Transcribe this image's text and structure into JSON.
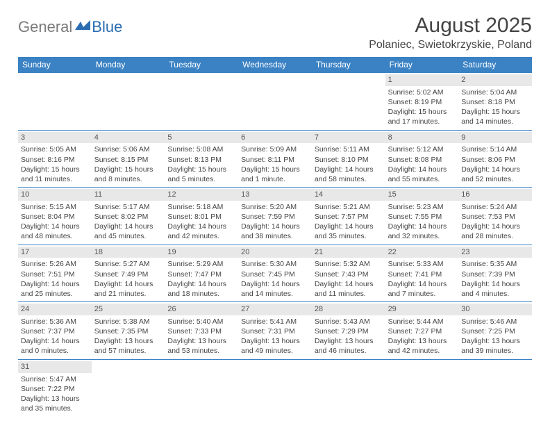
{
  "logo": {
    "gray": "General",
    "blue": "Blue"
  },
  "title": "August 2025",
  "location": "Polaniec, Swietokrzyskie, Poland",
  "colors": {
    "header_bg": "#3b82c4",
    "header_text": "#ffffff",
    "day_bar_bg": "#e8e8e8",
    "text": "#444444",
    "row_border": "#3b82c4"
  },
  "weekdays": [
    "Sunday",
    "Monday",
    "Tuesday",
    "Wednesday",
    "Thursday",
    "Friday",
    "Saturday"
  ],
  "weeks": [
    [
      null,
      null,
      null,
      null,
      null,
      {
        "n": "1",
        "sr": "Sunrise: 5:02 AM",
        "ss": "Sunset: 8:19 PM",
        "d1": "Daylight: 15 hours",
        "d2": "and 17 minutes."
      },
      {
        "n": "2",
        "sr": "Sunrise: 5:04 AM",
        "ss": "Sunset: 8:18 PM",
        "d1": "Daylight: 15 hours",
        "d2": "and 14 minutes."
      }
    ],
    [
      {
        "n": "3",
        "sr": "Sunrise: 5:05 AM",
        "ss": "Sunset: 8:16 PM",
        "d1": "Daylight: 15 hours",
        "d2": "and 11 minutes."
      },
      {
        "n": "4",
        "sr": "Sunrise: 5:06 AM",
        "ss": "Sunset: 8:15 PM",
        "d1": "Daylight: 15 hours",
        "d2": "and 8 minutes."
      },
      {
        "n": "5",
        "sr": "Sunrise: 5:08 AM",
        "ss": "Sunset: 8:13 PM",
        "d1": "Daylight: 15 hours",
        "d2": "and 5 minutes."
      },
      {
        "n": "6",
        "sr": "Sunrise: 5:09 AM",
        "ss": "Sunset: 8:11 PM",
        "d1": "Daylight: 15 hours",
        "d2": "and 1 minute."
      },
      {
        "n": "7",
        "sr": "Sunrise: 5:11 AM",
        "ss": "Sunset: 8:10 PM",
        "d1": "Daylight: 14 hours",
        "d2": "and 58 minutes."
      },
      {
        "n": "8",
        "sr": "Sunrise: 5:12 AM",
        "ss": "Sunset: 8:08 PM",
        "d1": "Daylight: 14 hours",
        "d2": "and 55 minutes."
      },
      {
        "n": "9",
        "sr": "Sunrise: 5:14 AM",
        "ss": "Sunset: 8:06 PM",
        "d1": "Daylight: 14 hours",
        "d2": "and 52 minutes."
      }
    ],
    [
      {
        "n": "10",
        "sr": "Sunrise: 5:15 AM",
        "ss": "Sunset: 8:04 PM",
        "d1": "Daylight: 14 hours",
        "d2": "and 48 minutes."
      },
      {
        "n": "11",
        "sr": "Sunrise: 5:17 AM",
        "ss": "Sunset: 8:02 PM",
        "d1": "Daylight: 14 hours",
        "d2": "and 45 minutes."
      },
      {
        "n": "12",
        "sr": "Sunrise: 5:18 AM",
        "ss": "Sunset: 8:01 PM",
        "d1": "Daylight: 14 hours",
        "d2": "and 42 minutes."
      },
      {
        "n": "13",
        "sr": "Sunrise: 5:20 AM",
        "ss": "Sunset: 7:59 PM",
        "d1": "Daylight: 14 hours",
        "d2": "and 38 minutes."
      },
      {
        "n": "14",
        "sr": "Sunrise: 5:21 AM",
        "ss": "Sunset: 7:57 PM",
        "d1": "Daylight: 14 hours",
        "d2": "and 35 minutes."
      },
      {
        "n": "15",
        "sr": "Sunrise: 5:23 AM",
        "ss": "Sunset: 7:55 PM",
        "d1": "Daylight: 14 hours",
        "d2": "and 32 minutes."
      },
      {
        "n": "16",
        "sr": "Sunrise: 5:24 AM",
        "ss": "Sunset: 7:53 PM",
        "d1": "Daylight: 14 hours",
        "d2": "and 28 minutes."
      }
    ],
    [
      {
        "n": "17",
        "sr": "Sunrise: 5:26 AM",
        "ss": "Sunset: 7:51 PM",
        "d1": "Daylight: 14 hours",
        "d2": "and 25 minutes."
      },
      {
        "n": "18",
        "sr": "Sunrise: 5:27 AM",
        "ss": "Sunset: 7:49 PM",
        "d1": "Daylight: 14 hours",
        "d2": "and 21 minutes."
      },
      {
        "n": "19",
        "sr": "Sunrise: 5:29 AM",
        "ss": "Sunset: 7:47 PM",
        "d1": "Daylight: 14 hours",
        "d2": "and 18 minutes."
      },
      {
        "n": "20",
        "sr": "Sunrise: 5:30 AM",
        "ss": "Sunset: 7:45 PM",
        "d1": "Daylight: 14 hours",
        "d2": "and 14 minutes."
      },
      {
        "n": "21",
        "sr": "Sunrise: 5:32 AM",
        "ss": "Sunset: 7:43 PM",
        "d1": "Daylight: 14 hours",
        "d2": "and 11 minutes."
      },
      {
        "n": "22",
        "sr": "Sunrise: 5:33 AM",
        "ss": "Sunset: 7:41 PM",
        "d1": "Daylight: 14 hours",
        "d2": "and 7 minutes."
      },
      {
        "n": "23",
        "sr": "Sunrise: 5:35 AM",
        "ss": "Sunset: 7:39 PM",
        "d1": "Daylight: 14 hours",
        "d2": "and 4 minutes."
      }
    ],
    [
      {
        "n": "24",
        "sr": "Sunrise: 5:36 AM",
        "ss": "Sunset: 7:37 PM",
        "d1": "Daylight: 14 hours",
        "d2": "and 0 minutes."
      },
      {
        "n": "25",
        "sr": "Sunrise: 5:38 AM",
        "ss": "Sunset: 7:35 PM",
        "d1": "Daylight: 13 hours",
        "d2": "and 57 minutes."
      },
      {
        "n": "26",
        "sr": "Sunrise: 5:40 AM",
        "ss": "Sunset: 7:33 PM",
        "d1": "Daylight: 13 hours",
        "d2": "and 53 minutes."
      },
      {
        "n": "27",
        "sr": "Sunrise: 5:41 AM",
        "ss": "Sunset: 7:31 PM",
        "d1": "Daylight: 13 hours",
        "d2": "and 49 minutes."
      },
      {
        "n": "28",
        "sr": "Sunrise: 5:43 AM",
        "ss": "Sunset: 7:29 PM",
        "d1": "Daylight: 13 hours",
        "d2": "and 46 minutes."
      },
      {
        "n": "29",
        "sr": "Sunrise: 5:44 AM",
        "ss": "Sunset: 7:27 PM",
        "d1": "Daylight: 13 hours",
        "d2": "and 42 minutes."
      },
      {
        "n": "30",
        "sr": "Sunrise: 5:46 AM",
        "ss": "Sunset: 7:25 PM",
        "d1": "Daylight: 13 hours",
        "d2": "and 39 minutes."
      }
    ],
    [
      {
        "n": "31",
        "sr": "Sunrise: 5:47 AM",
        "ss": "Sunset: 7:22 PM",
        "d1": "Daylight: 13 hours",
        "d2": "and 35 minutes."
      },
      null,
      null,
      null,
      null,
      null,
      null
    ]
  ]
}
